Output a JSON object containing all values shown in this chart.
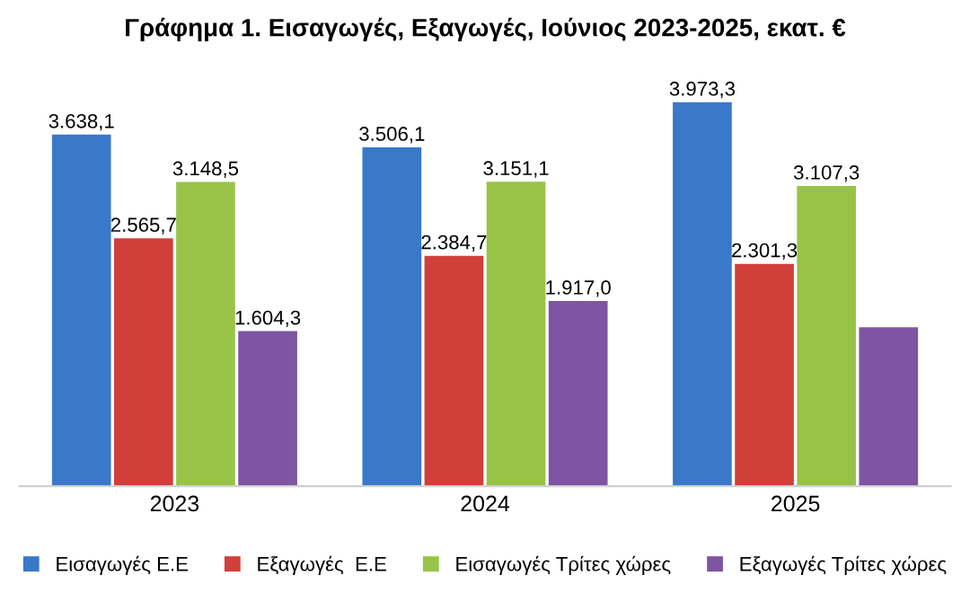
{
  "chart_data": {
    "type": "bar",
    "title": "Γράφημα 1. Εισαγωγές, Εξαγωγές, Ιούνιος 2023-2025, εκατ. €",
    "categories": [
      "2023",
      "2024",
      "2025"
    ],
    "series": [
      {
        "name": "Εισαγωγές Ε.Ε",
        "color": "#3a78c9",
        "values": [
          3638.1,
          3506.1,
          3973.3
        ],
        "value_labels": [
          "3.638,1",
          "3.506,1",
          "3.973,3"
        ]
      },
      {
        "name": "Εξαγωγές  Ε.Ε",
        "color": "#d13f3a",
        "values": [
          2565.7,
          2384.7,
          2301.3
        ],
        "value_labels": [
          "2.565,7",
          "2.384,7",
          "2.301,3"
        ]
      },
      {
        "name": "Εισαγωγές Τρίτες χώρες",
        "color": "#97c447",
        "values": [
          3148.5,
          3151.1,
          3107.3
        ],
        "value_labels": [
          "3.148,5",
          "3.151,1",
          "3.107,3"
        ]
      },
      {
        "name": "Εξαγωγές Τρίτες χώρες",
        "color": "#7d55a3",
        "values": [
          1604.3,
          1917.0,
          1645
        ],
        "value_labels": [
          "1.604,3",
          "1.917,0",
          null
        ]
      }
    ],
    "legend": "bottom",
    "grid": false
  }
}
